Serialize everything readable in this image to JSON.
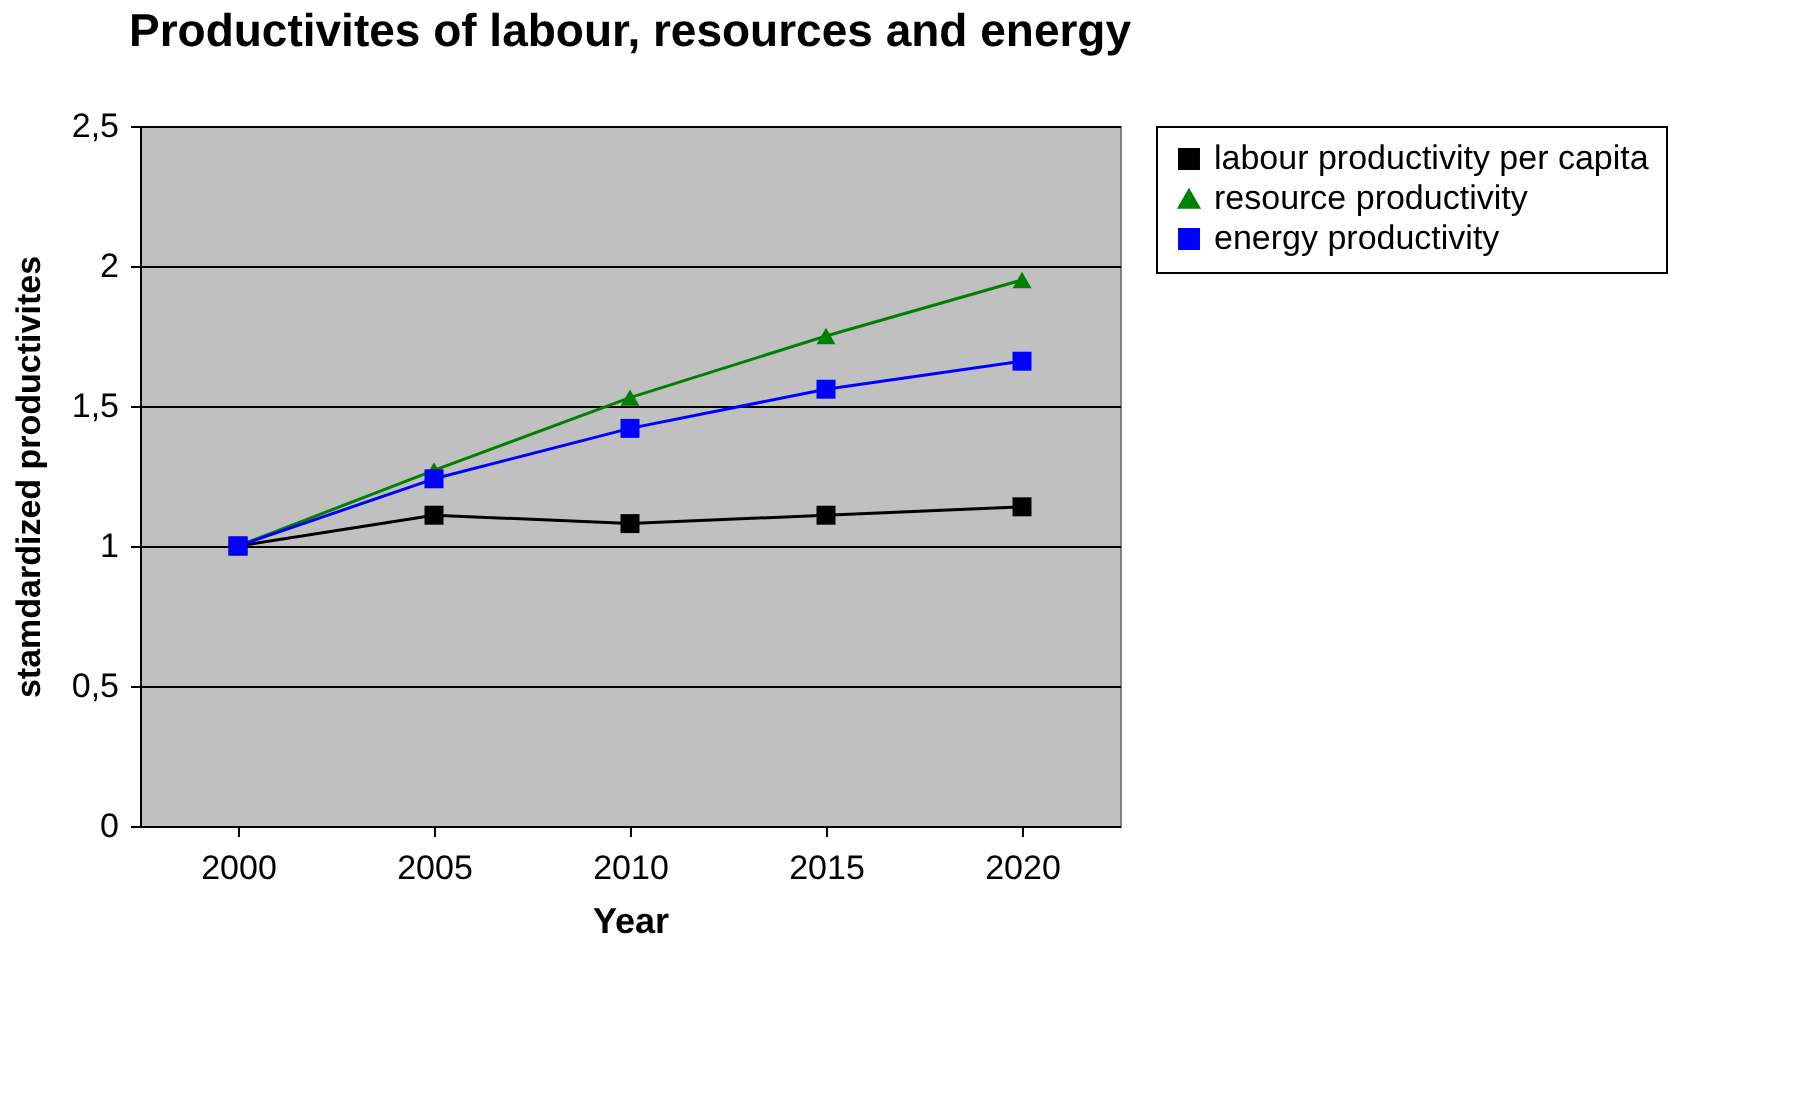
{
  "chart_data": {
    "type": "line",
    "title": "Productivites of labour, resources and energy",
    "xlabel": "Year",
    "ylabel": "stamdardized productivites",
    "categories": [
      "2000",
      "2005",
      "2010",
      "2015",
      "2020"
    ],
    "series": [
      {
        "name": "labour productivity per capita",
        "color": "#000000",
        "marker": "square",
        "values": [
          1.0,
          1.11,
          1.08,
          1.11,
          1.14
        ]
      },
      {
        "name": "resource productivity",
        "color": "#008000",
        "marker": "triangle",
        "values": [
          1.0,
          1.27,
          1.53,
          1.75,
          1.95
        ]
      },
      {
        "name": "energy productivity",
        "color": "#0000ff",
        "marker": "square",
        "values": [
          1.0,
          1.24,
          1.42,
          1.56,
          1.66
        ]
      }
    ],
    "ylim": [
      0,
      2.5
    ],
    "yticks": [
      0,
      {
        "value": 0.5,
        "label": "0,5"
      },
      1,
      {
        "value": 1.5,
        "label": "1,5"
      },
      2,
      {
        "value": 2.5,
        "label": "2,5"
      }
    ],
    "grid": "y",
    "legend": "right",
    "line_style": "solid"
  }
}
